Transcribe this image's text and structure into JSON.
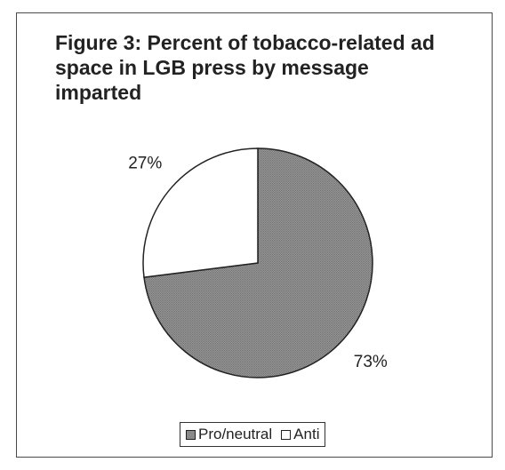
{
  "chart_data": {
    "type": "pie",
    "title": "Figure 3:  Percent of tobacco-related ad space in LGB press by message imparted",
    "categories": [
      "Pro/neutral",
      "Anti"
    ],
    "values": [
      73,
      27
    ],
    "labels": [
      "73%",
      "27%"
    ],
    "colors": [
      "#8a8a8a",
      "#ffffff"
    ],
    "legend_position": "bottom"
  }
}
